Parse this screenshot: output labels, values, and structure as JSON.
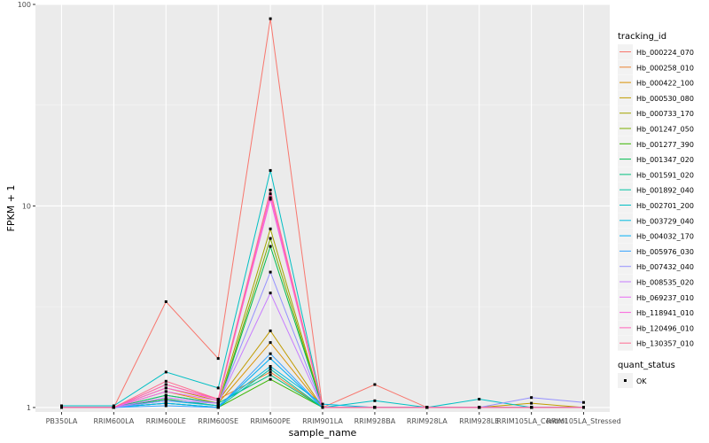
{
  "chart_data": {
    "type": "line",
    "scale_y": "log10",
    "xlabel": "sample_name",
    "ylabel": "FPKM + 1",
    "ylim": [
      0.95,
      100
    ],
    "y_ticks": [
      1,
      10,
      100
    ],
    "y_tick_labels": [
      "1",
      "10",
      "100"
    ],
    "categories": [
      "PB350LA",
      "RRIM600LA",
      "RRIM600LE",
      "RRIM600SE",
      "RRIM600PE",
      "RRIM901LA",
      "RRIM928BA",
      "RRIM928LA",
      "RRIM928LE",
      "RRIM105LA_Control",
      "RRIM105LA_Stressed"
    ],
    "series": [
      {
        "name": "Hb_000224_070",
        "color": "#F8766D",
        "values": [
          1.0,
          1.0,
          3.35,
          1.75,
          85.0,
          1.0,
          1.3,
          1.0,
          1.0,
          1.0,
          1.0
        ]
      },
      {
        "name": "Hb_000258_010",
        "color": "#EA8331",
        "values": [
          1.0,
          1.0,
          1.3,
          1.1,
          1.5,
          1.0,
          1.0,
          1.0,
          1.0,
          1.0,
          1.0
        ]
      },
      {
        "name": "Hb_000422_100",
        "color": "#D89000",
        "values": [
          1.0,
          1.0,
          1.2,
          1.05,
          2.1,
          1.0,
          1.0,
          1.0,
          1.0,
          1.0,
          1.0
        ]
      },
      {
        "name": "Hb_000530_080",
        "color": "#C09B00",
        "values": [
          1.0,
          1.0,
          1.25,
          1.08,
          2.4,
          1.0,
          1.0,
          1.0,
          1.0,
          1.05,
          1.0
        ]
      },
      {
        "name": "Hb_000733_170",
        "color": "#A3A500",
        "values": [
          1.0,
          1.0,
          1.15,
          1.05,
          7.7,
          1.0,
          1.0,
          1.0,
          1.0,
          1.0,
          1.0
        ]
      },
      {
        "name": "Hb_001247_050",
        "color": "#7CAE00",
        "values": [
          1.0,
          1.0,
          1.1,
          1.02,
          6.9,
          1.0,
          1.0,
          1.0,
          1.0,
          1.0,
          1.0
        ]
      },
      {
        "name": "Hb_001277_390",
        "color": "#39B600",
        "values": [
          1.0,
          1.0,
          1.05,
          1.0,
          1.38,
          1.0,
          1.0,
          1.0,
          1.0,
          1.0,
          1.0
        ]
      },
      {
        "name": "Hb_001347_020",
        "color": "#00BB4E",
        "values": [
          1.0,
          1.0,
          1.1,
          1.02,
          6.3,
          1.0,
          1.0,
          1.0,
          1.0,
          1.0,
          1.0
        ]
      },
      {
        "name": "Hb_001591_020",
        "color": "#00BF7D",
        "values": [
          1.0,
          1.0,
          1.15,
          1.05,
          1.45,
          1.0,
          1.0,
          1.0,
          1.0,
          1.0,
          1.0
        ]
      },
      {
        "name": "Hb_001892_040",
        "color": "#00C1A3",
        "values": [
          1.0,
          1.0,
          1.05,
          1.0,
          1.55,
          1.0,
          1.0,
          1.0,
          1.0,
          1.0,
          1.0
        ]
      },
      {
        "name": "Hb_002701_200",
        "color": "#00BFC4",
        "values": [
          1.02,
          1.02,
          1.5,
          1.25,
          15.0,
          1.0,
          1.08,
          1.0,
          1.1,
          1.0,
          1.0
        ]
      },
      {
        "name": "Hb_003729_040",
        "color": "#00BAE0",
        "values": [
          1.0,
          1.0,
          1.08,
          1.02,
          1.6,
          1.04,
          1.0,
          1.0,
          1.0,
          1.0,
          1.0
        ]
      },
      {
        "name": "Hb_004032_170",
        "color": "#00B0F6",
        "values": [
          1.0,
          1.0,
          1.05,
          1.0,
          1.75,
          1.0,
          1.0,
          1.0,
          1.0,
          1.0,
          1.0
        ]
      },
      {
        "name": "Hb_005976_030",
        "color": "#35A2FF",
        "values": [
          1.0,
          1.0,
          1.02,
          1.0,
          1.85,
          1.0,
          1.0,
          1.0,
          1.0,
          1.0,
          1.0
        ]
      },
      {
        "name": "Hb_007432_040",
        "color": "#9590FF",
        "values": [
          1.0,
          1.0,
          1.08,
          1.05,
          4.7,
          1.0,
          1.0,
          1.0,
          1.0,
          1.12,
          1.06
        ]
      },
      {
        "name": "Hb_008535_020",
        "color": "#C77CFF",
        "values": [
          1.0,
          1.0,
          1.12,
          1.05,
          3.7,
          1.0,
          1.0,
          1.0,
          1.0,
          1.0,
          1.0
        ]
      },
      {
        "name": "Hb_069237_010",
        "color": "#E76BF3",
        "values": [
          1.0,
          1.0,
          1.2,
          1.08,
          11.0,
          1.0,
          1.0,
          1.0,
          1.0,
          1.0,
          1.0
        ]
      },
      {
        "name": "Hb_118941_010",
        "color": "#FA62DB",
        "values": [
          1.0,
          1.0,
          1.25,
          1.1,
          10.8,
          1.0,
          1.0,
          1.0,
          1.0,
          1.0,
          1.0
        ]
      },
      {
        "name": "Hb_120496_010",
        "color": "#FF62BC",
        "values": [
          1.0,
          1.0,
          1.3,
          1.1,
          11.5,
          1.0,
          1.0,
          1.0,
          1.0,
          1.0,
          1.0
        ]
      },
      {
        "name": "Hb_130357_010",
        "color": "#FF6C91",
        "values": [
          1.0,
          1.0,
          1.35,
          1.1,
          12.0,
          1.0,
          1.0,
          1.0,
          1.0,
          1.0,
          1.0
        ]
      }
    ],
    "legend_title": "tracking_id",
    "legend_position": "right",
    "shape_legend_title": "quant_status",
    "shape_legend_items": [
      "OK"
    ],
    "grid": true
  }
}
